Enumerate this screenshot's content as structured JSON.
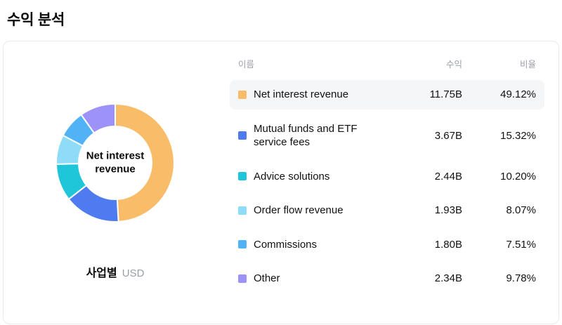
{
  "page": {
    "title": "수익 분석"
  },
  "card": {
    "center_label": "Net interest revenue",
    "caption": {
      "label": "사업별",
      "unit": "USD"
    }
  },
  "table": {
    "headers": {
      "name": "이름",
      "value": "수익",
      "percent": "비율"
    }
  },
  "chart_data": {
    "type": "pie",
    "subtype": "donut",
    "title": "수익 분석",
    "unit": "USD",
    "dimension": "사업별",
    "center_label": "Net interest revenue",
    "legend_position": "right",
    "start_angle_deg": 0,
    "direction": "clockwise",
    "series": [
      {
        "name": "Net interest revenue",
        "value": "11.75B",
        "percent": "49.12%",
        "pct": 49.12,
        "color": "#F9BD69",
        "highlight": true
      },
      {
        "name": "Mutual funds and ETF service fees",
        "value": "3.67B",
        "percent": "15.32%",
        "pct": 15.32,
        "color": "#4E7CF0",
        "highlight": false
      },
      {
        "name": "Advice solutions",
        "value": "2.44B",
        "percent": "10.20%",
        "pct": 10.2,
        "color": "#1FC6D9",
        "highlight": false
      },
      {
        "name": "Order flow revenue",
        "value": "1.93B",
        "percent": "8.07%",
        "pct": 8.07,
        "color": "#8EDCF8",
        "highlight": false
      },
      {
        "name": "Commissions",
        "value": "1.80B",
        "percent": "7.51%",
        "pct": 7.51,
        "color": "#51B3F5",
        "highlight": false
      },
      {
        "name": "Other",
        "value": "2.34B",
        "percent": "9.78%",
        "pct": 9.78,
        "color": "#9C92F8",
        "highlight": false
      }
    ]
  }
}
